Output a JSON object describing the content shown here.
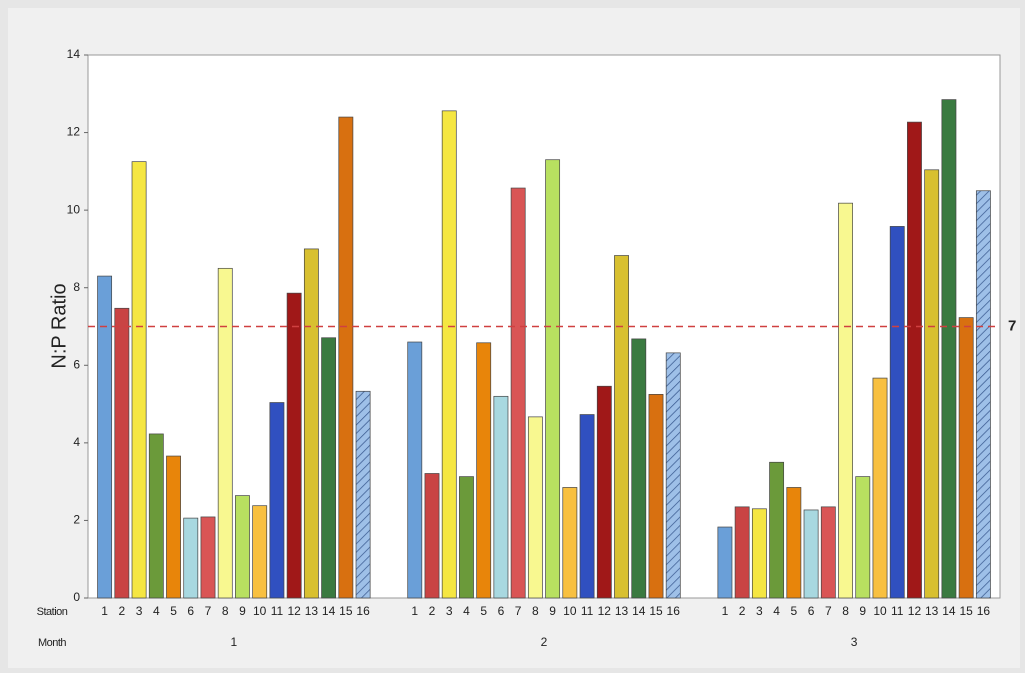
{
  "chart_data": {
    "type": "bar",
    "y_label": "N:P Ratio",
    "station_row_label": "Station",
    "month_row_label": "Month",
    "stations": [
      "1",
      "2",
      "3",
      "4",
      "5",
      "6",
      "7",
      "8",
      "9",
      "10",
      "11",
      "12",
      "13",
      "14",
      "15",
      "16"
    ],
    "colors": [
      "#6a9fd8",
      "#c94444",
      "#f5e642",
      "#6b9a3a",
      "#e8850a",
      "#a8d8e0",
      "#d95555",
      "#f8f890",
      "#b8e060",
      "#f8c040",
      "#3050c0",
      "#a01818",
      "#d8c030",
      "#3a7a40",
      "#d87010",
      "#9ec0e8"
    ],
    "hatch": [
      false,
      false,
      false,
      false,
      false,
      false,
      false,
      false,
      false,
      false,
      false,
      false,
      false,
      false,
      false,
      true
    ],
    "series": [
      {
        "name": "1",
        "values": [
          8.3,
          7.47,
          11.25,
          4.23,
          3.66,
          2.06,
          2.09,
          8.5,
          2.64,
          2.38,
          5.04,
          7.86,
          9.0,
          6.71,
          12.4,
          5.33
        ]
      },
      {
        "name": "2",
        "values": [
          6.6,
          3.21,
          12.56,
          3.13,
          6.58,
          5.2,
          10.57,
          4.67,
          11.3,
          2.85,
          4.73,
          5.46,
          8.83,
          6.68,
          5.25,
          6.32
        ]
      },
      {
        "name": "3",
        "values": [
          1.83,
          2.35,
          2.3,
          3.5,
          2.85,
          2.27,
          2.35,
          10.18,
          3.13,
          5.67,
          9.58,
          12.27,
          11.04,
          12.85,
          7.23,
          10.5
        ]
      }
    ],
    "reference_line": {
      "value": 7,
      "label": "7",
      "color": "#d04040"
    },
    "ylim": [
      0,
      14
    ],
    "yticks": [
      0,
      2,
      4,
      6,
      8,
      10,
      12,
      14
    ]
  }
}
